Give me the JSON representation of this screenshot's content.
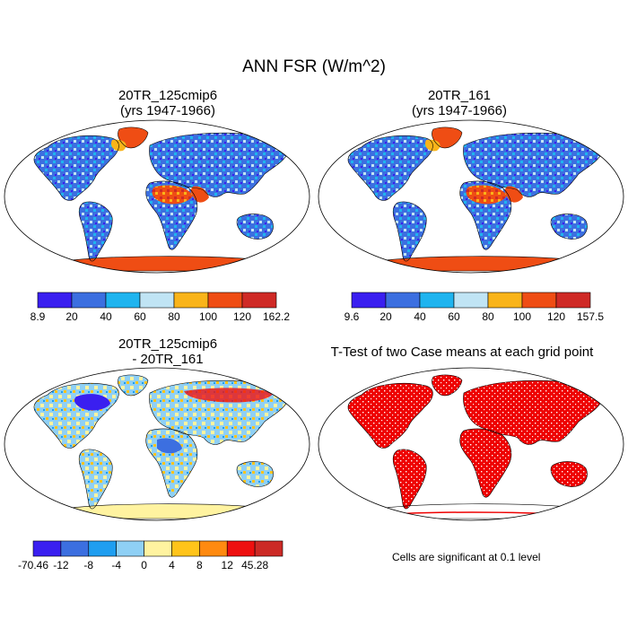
{
  "figure": {
    "title": "ANN FSR (W/m^2)"
  },
  "panels": [
    {
      "id": "case1",
      "title_line1": "20TR_125cmip6",
      "title_line2": "(yrs 1947-1966)"
    },
    {
      "id": "case2",
      "title_line1": "20TR_161",
      "title_line2": "(yrs 1947-1966)"
    },
    {
      "id": "diff",
      "title_line1": "20TR_125cmip6",
      "title_line2": "- 20TR_161"
    },
    {
      "id": "ttest",
      "title_line1": "T-Test of two Case means at each grid point",
      "title_line2": ""
    }
  ],
  "colorbars": {
    "case1": {
      "colors": [
        "#3a1ff0",
        "#3c6fe0",
        "#1fb4ef",
        "#c0e4f4",
        "#f9b41a",
        "#ef4d14",
        "#cf2a26"
      ],
      "labels": [
        "8.9",
        "20",
        "40",
        "60",
        "80",
        "100",
        "120",
        "162.2"
      ]
    },
    "case2": {
      "colors": [
        "#3a1ff0",
        "#3c6fe0",
        "#1fb4ef",
        "#c0e4f4",
        "#f9b41a",
        "#ef4d14",
        "#cf2a26"
      ],
      "labels": [
        "9.6",
        "20",
        "40",
        "60",
        "80",
        "100",
        "120",
        "157.5"
      ]
    },
    "diff": {
      "colors": [
        "#3a1ff0",
        "#3c6fe0",
        "#1f9ef0",
        "#8fd0f5",
        "#fff3a0",
        "#ffc41a",
        "#ff8a10",
        "#ee1010",
        "#cc2a26"
      ],
      "labels": [
        "-70.46",
        "-12",
        "-8",
        "-4",
        "0",
        "4",
        "8",
        "12",
        "45.28"
      ]
    }
  },
  "ttest_note": "Cells are significant at 0.1 level",
  "colors": {
    "ocean": "#ffffff",
    "outline": "#000000",
    "sig_red": "#ee0000"
  }
}
